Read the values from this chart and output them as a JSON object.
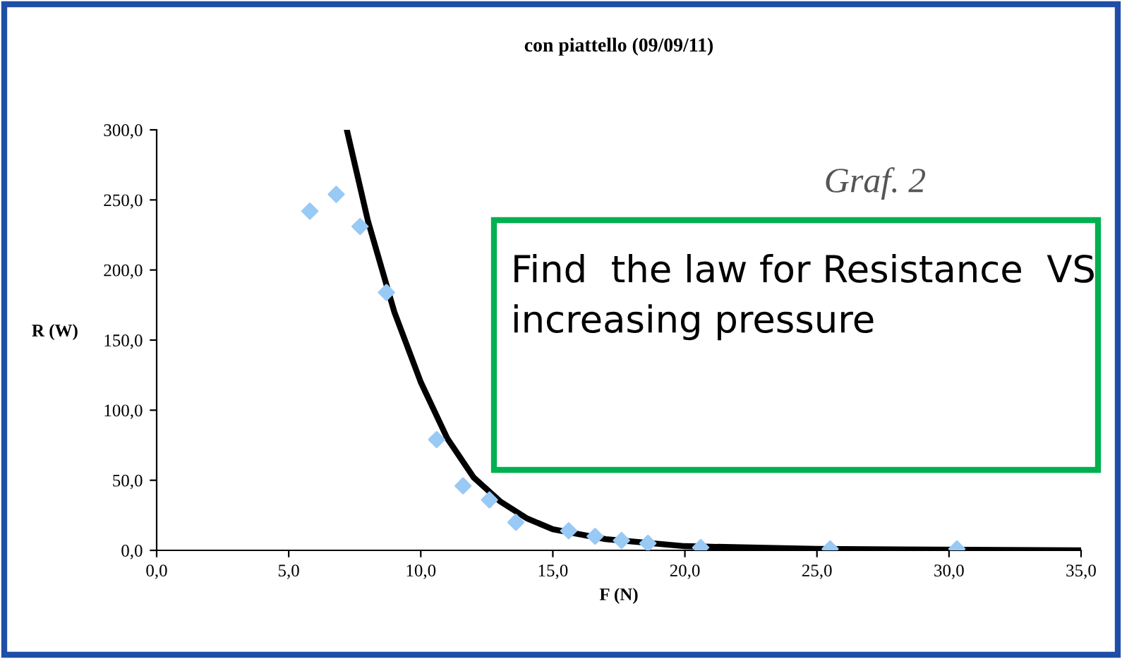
{
  "chart_data": {
    "type": "scatter",
    "title": "con piattello (09/09/11)",
    "xlabel": "F (N)",
    "ylabel": "R (W)",
    "series": [
      {
        "color": "#99c9f5",
        "marker": "diamond",
        "x": [
          5.8,
          6.8,
          7.7,
          8.7,
          10.6,
          11.6,
          12.6,
          13.6,
          15.6,
          16.6,
          17.6,
          18.6,
          20.6,
          25.5,
          30.3
        ],
        "values": [
          242,
          254,
          231,
          184,
          79,
          46,
          36,
          20,
          14,
          10,
          7,
          5,
          2,
          1,
          1
        ]
      },
      {
        "type": "line",
        "color": "#000000",
        "x": [
          7.2,
          8,
          9,
          10,
          11,
          12,
          13,
          14,
          15,
          17,
          20,
          25,
          35
        ],
        "values": [
          300,
          235,
          170,
          120,
          80,
          52,
          35,
          23,
          15,
          8,
          3,
          1,
          0
        ]
      }
    ],
    "xlim": [
      0,
      35
    ],
    "ylim": [
      0,
      300
    ],
    "xticks": [
      {
        "value": 0,
        "label": "0,0"
      },
      {
        "value": 5,
        "label": "5,0"
      },
      {
        "value": 10,
        "label": "10,0"
      },
      {
        "value": 15,
        "label": "15,0"
      },
      {
        "value": 20,
        "label": "20,0"
      },
      {
        "value": 25,
        "label": "25,0"
      },
      {
        "value": 30,
        "label": "30,0"
      },
      {
        "value": 35,
        "label": "35,0"
      }
    ],
    "yticks": [
      {
        "value": 0,
        "label": "0,0"
      },
      {
        "value": 50,
        "label": "50,0"
      },
      {
        "value": 100,
        "label": "100,0"
      },
      {
        "value": 150,
        "label": "150,0"
      },
      {
        "value": 200,
        "label": "200,0"
      },
      {
        "value": 250,
        "label": "250,0"
      },
      {
        "value": 300,
        "label": "300,0"
      }
    ],
    "grid": false,
    "legend": false,
    "annotations": [
      "Graf. 2",
      "Find  the law for Resistance  VS increasing pressure"
    ]
  }
}
